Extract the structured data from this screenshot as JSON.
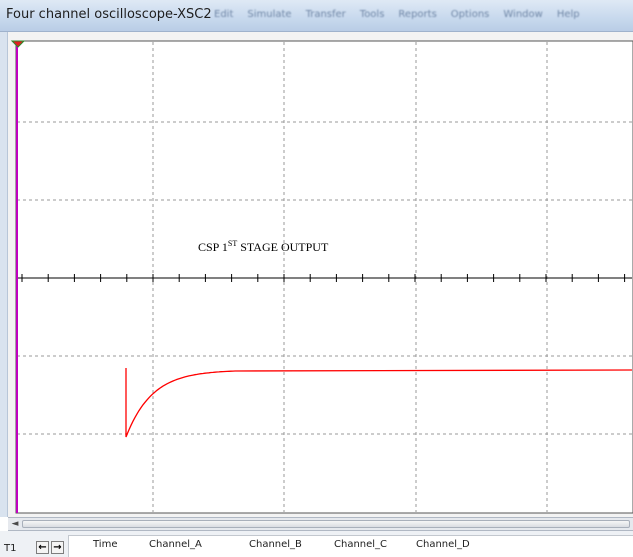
{
  "window": {
    "title": "Four channel oscilloscope-XSC2",
    "menu_items": [
      "Edit",
      "Simulate",
      "Transfer",
      "Tools",
      "Reports",
      "Options",
      "Window",
      "Help"
    ]
  },
  "plot": {
    "annotation_prefix": "CSP 1",
    "annotation_sup": "ST",
    "annotation_suffix": " STAGE OUTPUT",
    "trace_color": "#ff0000",
    "axis_marker_color": "#c000c0",
    "cursor_marker": "T1"
  },
  "readout": {
    "t1_label": "T1",
    "columns": [
      "Time",
      "Channel_A",
      "Channel_B",
      "Channel_C",
      "Channel_D"
    ]
  }
}
